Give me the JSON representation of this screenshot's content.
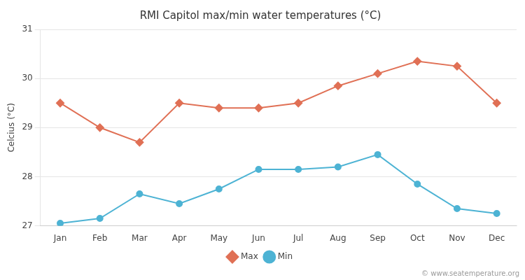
{
  "chart_data": {
    "type": "line",
    "title": "RMI Capitol max/min water temperatures (°C)",
    "y_label": "Celcius (°C)",
    "annotations": [
      "© www.seatemperature.org"
    ],
    "categories": [
      "Jan",
      "Feb",
      "Mar",
      "Apr",
      "May",
      "Jun",
      "Jul",
      "Aug",
      "Sep",
      "Oct",
      "Nov",
      "Dec"
    ],
    "series": [
      {
        "name": "Max",
        "color": "#e07055",
        "marker": "diamond",
        "values": [
          29.5,
          29.0,
          28.7,
          29.5,
          29.4,
          29.4,
          29.5,
          29.85,
          30.1,
          30.35,
          30.25,
          29.5
        ]
      },
      {
        "name": "Min",
        "color": "#4db3d4",
        "marker": "circle",
        "values": [
          27.05,
          27.15,
          27.65,
          27.45,
          27.75,
          28.15,
          28.15,
          28.2,
          28.45,
          27.85,
          27.35,
          27.25
        ]
      }
    ],
    "ylim": [
      27,
      31
    ],
    "yticks": [
      27,
      28,
      29,
      30,
      31
    ],
    "grid": true,
    "legend": "bottom"
  }
}
